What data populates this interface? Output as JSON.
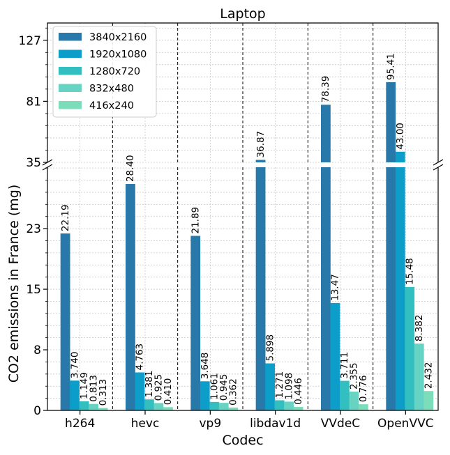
{
  "chart_data": {
    "type": "bar",
    "title": "Laptop",
    "xlabel": "Codec",
    "ylabel": "CO2 emissions in France (mg)",
    "broken_axis": true,
    "lower_ylim": [
      0,
      30.5
    ],
    "upper_ylim": [
      35,
      140
    ],
    "yticks_lower": [
      "0",
      "8",
      "15",
      "23"
    ],
    "yticks_upper": [
      "35",
      "81",
      "127"
    ],
    "yticks_lower_values": [
      0,
      7.6,
      15.2,
      22.8
    ],
    "yticks_upper_values": [
      35,
      81,
      127
    ],
    "grid": true,
    "legend_position": "top-left",
    "categories": [
      "h264",
      "hevc",
      "vp9",
      "libdav1d",
      "VVdeC",
      "OpenVVC"
    ],
    "series": [
      {
        "name": "3840x2160",
        "color": "#2878a9",
        "values": [
          22.19,
          28.4,
          21.89,
          36.87,
          78.39,
          95.41
        ],
        "labels": [
          "22.19",
          "28.40",
          "21.89",
          "36.87",
          "78.39",
          "95.41"
        ]
      },
      {
        "name": "1920x1080",
        "color": "#0c9dc8",
        "values": [
          3.74,
          4.763,
          3.648,
          5.898,
          13.47,
          43.0
        ],
        "labels": [
          "3.740",
          "4.763",
          "3.648",
          "5.898",
          "13.47",
          "43.00"
        ]
      },
      {
        "name": "1280x720",
        "color": "#33bfbf",
        "values": [
          1.149,
          1.381,
          1.061,
          1.271,
          3.711,
          15.48
        ],
        "labels": [
          "1.149",
          "1.381",
          "1.061",
          "1.271",
          "3.711",
          "15.48"
        ]
      },
      {
        "name": "832x480",
        "color": "#66d3c3",
        "values": [
          0.813,
          0.925,
          0.945,
          1.098,
          2.355,
          8.382
        ],
        "labels": [
          "0.813",
          "0.925",
          "0.945",
          "1.098",
          "2.355",
          "8.382"
        ]
      },
      {
        "name": "416x240",
        "color": "#7cddbb",
        "values": [
          0.313,
          0.41,
          0.362,
          0.446,
          0.776,
          2.432
        ],
        "labels": [
          "0.313",
          "0.410",
          "0.362",
          "0.446",
          "0.776",
          "2.432"
        ]
      }
    ]
  }
}
